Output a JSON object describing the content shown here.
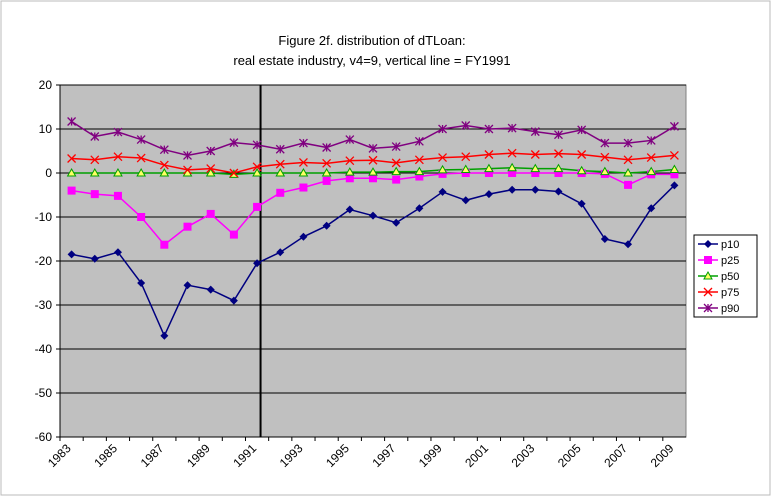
{
  "chart_data": {
    "type": "line",
    "title": "Figure 2f. distribution of dTLoan:",
    "subtitle": "real estate industry, v4=9, vertical line = FY1991",
    "categories": [
      "1983",
      null,
      "1985",
      null,
      "1987",
      null,
      "1989",
      null,
      "1991",
      null,
      "1993",
      null,
      "1995",
      null,
      "1997",
      null,
      "1999",
      null,
      "2001",
      null,
      "2003",
      null,
      "2005",
      null,
      "2007",
      null,
      "2009"
    ],
    "series": [
      {
        "name": "p10",
        "color": "#000080",
        "marker": "diamond",
        "values": [
          -18.5,
          -19.5,
          -18,
          -25,
          -37,
          -25.5,
          -26.5,
          -29,
          -20.5,
          -18,
          -14.5,
          -12,
          -8.3,
          -9.7,
          -11.3,
          -8,
          -4.3,
          -6.2,
          -4.8,
          -3.8,
          -3.8,
          -4.2,
          -7,
          -15,
          -16.2,
          -8,
          -2.8
        ]
      },
      {
        "name": "p25",
        "color": "#ff00ff",
        "marker": "square",
        "values": [
          -4,
          -4.8,
          -5.2,
          -10,
          -16.3,
          -12.2,
          -9.3,
          -14,
          -7.7,
          -4.5,
          -3.3,
          -1.8,
          -1.2,
          -1.2,
          -1.5,
          -0.8,
          -0.2,
          0,
          0,
          0,
          0,
          0,
          0,
          -0.2,
          -2.7,
          -0.3,
          -0.3
        ]
      },
      {
        "name": "p50",
        "color": "#00a000",
        "marker": "triangle",
        "values": [
          0,
          0,
          0,
          0,
          0,
          0,
          0,
          -0.3,
          0,
          0,
          0,
          0,
          0.2,
          0.2,
          0.3,
          0.3,
          0.7,
          0.8,
          1.0,
          1.2,
          1.0,
          1.0,
          0.5,
          0.3,
          0,
          0.3,
          0.8
        ]
      },
      {
        "name": "p75",
        "color": "#ff0000",
        "marker": "x",
        "values": [
          3.3,
          3.0,
          3.7,
          3.4,
          1.8,
          0.7,
          1.0,
          0.0,
          1.4,
          2.0,
          2.4,
          2.2,
          2.8,
          2.9,
          2.3,
          3.0,
          3.5,
          3.7,
          4.2,
          4.5,
          4.2,
          4.4,
          4.2,
          3.6,
          3.0,
          3.5,
          4.0
        ]
      },
      {
        "name": "p90",
        "color": "#800080",
        "marker": "star",
        "values": [
          11.7,
          8.3,
          9.3,
          7.6,
          5.3,
          4.0,
          5.0,
          6.9,
          6.4,
          5.4,
          6.8,
          5.8,
          7.6,
          5.6,
          6.0,
          7.2,
          10.0,
          10.8,
          10.0,
          10.2,
          9.4,
          8.7,
          9.8,
          6.8,
          6.8,
          7.4,
          10.6
        ]
      }
    ],
    "ylim": [
      -60,
      20
    ],
    "yticks": [
      -60,
      -50,
      -40,
      -30,
      -20,
      -10,
      0,
      10,
      20
    ],
    "vertical_line_at": "1991",
    "plot_background": "#c0c0c0",
    "legend": "right"
  }
}
